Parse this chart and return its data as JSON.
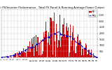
{
  "title": "Solar PV/Inverter Performance   Total PV Panel & Running Average Power Output",
  "background_color": "#ffffff",
  "grid_color": "#bbbbbb",
  "bar_color": "#cc0000",
  "avg_line_color": "#0000cc",
  "num_bars": 130,
  "seed": 7,
  "ylim": [
    0,
    4000
  ],
  "yticks": [
    500,
    1000,
    1500,
    2000,
    2500,
    3000,
    3500
  ],
  "title_fontsize": 2.8,
  "tick_fontsize": 2.2,
  "legend_fontsize": 2.2
}
